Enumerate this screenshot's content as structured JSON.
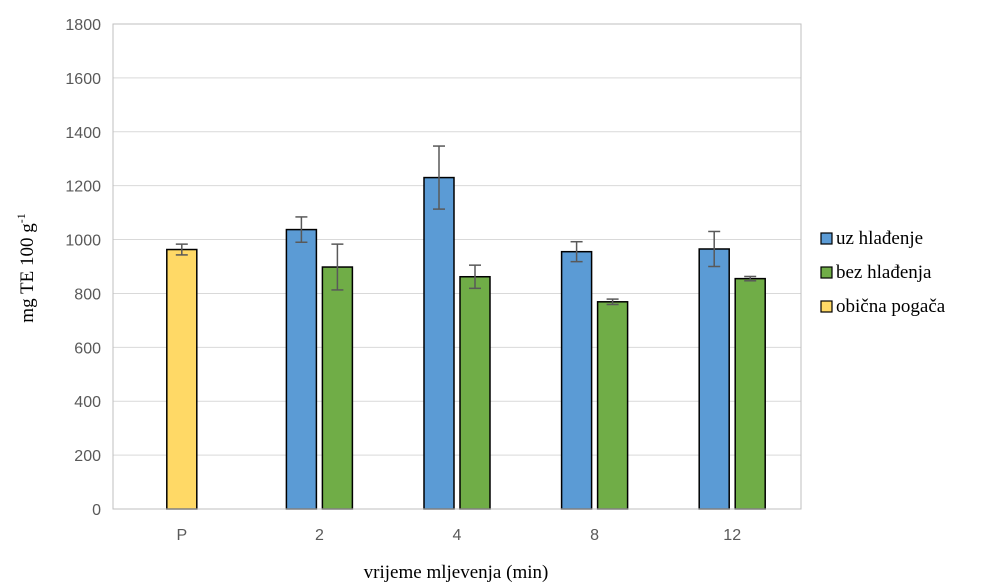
{
  "chart_data": {
    "type": "bar",
    "categories": [
      "P",
      "2",
      "4",
      "8",
      "12"
    ],
    "series": [
      {
        "name": "uz hlađenje",
        "color": "#5B9BD5",
        "values": [
          null,
          1037,
          1230,
          955,
          965
        ],
        "errors": [
          null,
          47,
          117,
          37,
          65
        ]
      },
      {
        "name": "bez hlađenja",
        "color": "#70AD47",
        "values": [
          null,
          898,
          862,
          769,
          855
        ],
        "errors": [
          null,
          85,
          43,
          10,
          8
        ]
      },
      {
        "name": "obična pogača",
        "color": "#FFD966",
        "values": [
          963,
          null,
          null,
          null,
          null
        ],
        "errors": [
          20,
          null,
          null,
          null,
          null
        ]
      }
    ],
    "xlabel": "vrijeme mljevenja (min)",
    "ylabel": "mg TE 100 g",
    "ylabel_superscript": "-1",
    "ylim": [
      0,
      1800
    ],
    "yticks": [
      0,
      200,
      400,
      600,
      800,
      1000,
      1200,
      1400,
      1600,
      1800
    ],
    "grid": true,
    "legend": "right"
  }
}
